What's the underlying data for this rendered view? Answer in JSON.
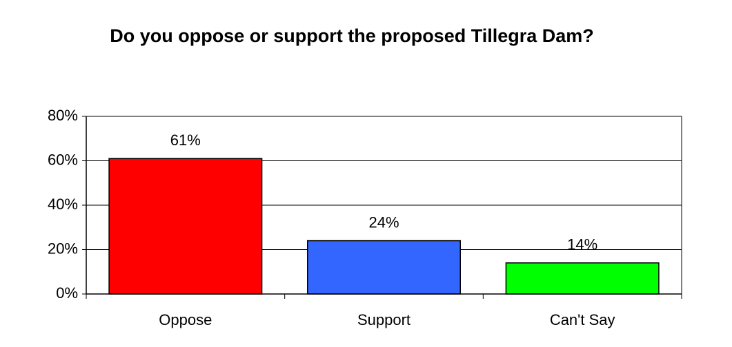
{
  "chart_data": {
    "type": "bar",
    "title": "Do you oppose or support the proposed Tillegra Dam?",
    "categories": [
      "Oppose",
      "Support",
      "Can't Say"
    ],
    "values": [
      61,
      24,
      14
    ],
    "value_labels": [
      "61%",
      "24%",
      "14%"
    ],
    "colors": [
      "#ff0000",
      "#3366ff",
      "#00ff00"
    ],
    "ylim": [
      0,
      80
    ],
    "yticks": [
      {
        "value": 0,
        "label": "0%"
      },
      {
        "value": 20,
        "label": "20%"
      },
      {
        "value": 40,
        "label": "40%"
      },
      {
        "value": 60,
        "label": "60%"
      },
      {
        "value": 80,
        "label": "80%"
      }
    ],
    "grid": true
  }
}
